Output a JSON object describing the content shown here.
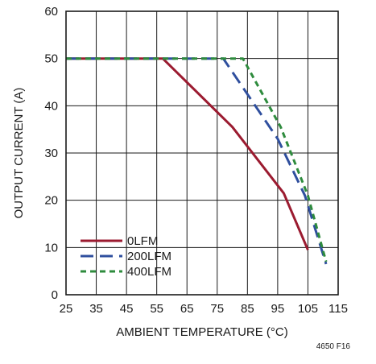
{
  "chart_data": {
    "type": "line",
    "xlabel": "AMBIENT TEMPERATURE (°C)",
    "ylabel": "OUTPUT CURRENT (A)",
    "xlim": [
      25,
      115
    ],
    "ylim": [
      0,
      60
    ],
    "x_ticks": [
      "25",
      "35",
      "45",
      "55",
      "65",
      "75",
      "85",
      "95",
      "105",
      "115"
    ],
    "y_ticks": [
      "0",
      "10",
      "20",
      "30",
      "40",
      "50",
      "60"
    ],
    "grid": true,
    "legend_position": "bottom-left",
    "series": [
      {
        "name": "0LFM",
        "color": "#9b1b30",
        "dash": "solid",
        "points": [
          [
            25,
            50
          ],
          [
            57,
            50
          ],
          [
            80,
            35.5
          ],
          [
            97,
            21.5
          ],
          [
            105,
            9.5
          ]
        ]
      },
      {
        "name": "200LFM",
        "color": "#2f4f9e",
        "dash": "longdash",
        "points": [
          [
            25,
            50
          ],
          [
            77,
            50
          ],
          [
            95,
            33
          ],
          [
            104,
            21
          ],
          [
            111,
            6.5
          ]
        ]
      },
      {
        "name": "400LFM",
        "color": "#2e8b3d",
        "dash": "shortdash",
        "points": [
          [
            25,
            50
          ],
          [
            83.5,
            50
          ],
          [
            96,
            35.5
          ],
          [
            105,
            21
          ],
          [
            111,
            7
          ]
        ]
      }
    ]
  },
  "figure_id": "4650 F16"
}
